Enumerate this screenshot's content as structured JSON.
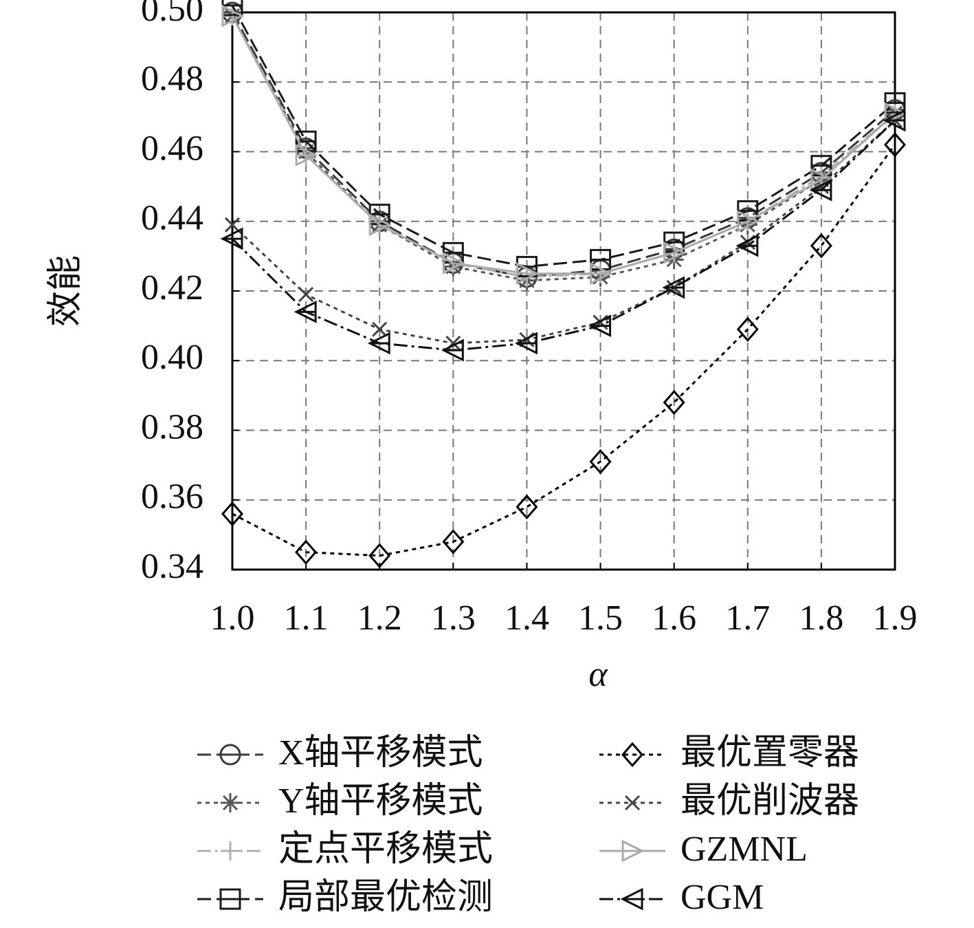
{
  "chart_data": {
    "type": "line",
    "x_label": "α",
    "y_label": "效能",
    "x": [
      1.0,
      1.1,
      1.2,
      1.3,
      1.4,
      1.5,
      1.6,
      1.7,
      1.8,
      1.9
    ],
    "xlim": [
      1.0,
      1.9
    ],
    "xticks": [
      {
        "value": 1.0,
        "label": "1.0"
      },
      1.1,
      1.2,
      1.3,
      1.4,
      1.5,
      1.6,
      1.7,
      1.8,
      1.9
    ],
    "ylim": [
      0.34,
      0.5
    ],
    "yticks": [
      0.34,
      0.36,
      0.38,
      {
        "value": 0.4,
        "label": "0.40"
      },
      0.42,
      0.44,
      0.46,
      0.48,
      {
        "value": 0.5,
        "label": "0.50"
      }
    ],
    "grid": true,
    "legend": "bottom",
    "series": [
      {
        "name": "X轴平移模式",
        "color": "#3a3a3a",
        "marker": "circle",
        "line_style": "dashed",
        "values": [
          0.5,
          0.461,
          0.44,
          0.428,
          0.424,
          0.426,
          0.432,
          0.441,
          0.454,
          0.472
        ]
      },
      {
        "name": "Y轴平移模式",
        "color": "#555555",
        "marker": "asterisk",
        "line_style": "dotted",
        "values": [
          0.499,
          0.46,
          0.439,
          0.427,
          0.423,
          0.424,
          0.429,
          0.439,
          0.452,
          0.471
        ]
      },
      {
        "name": "定点平移模式",
        "color": "#b0b0b0",
        "marker": "plus",
        "line_style": "dashdot",
        "values": [
          0.499,
          0.459,
          0.439,
          0.428,
          0.424,
          0.425,
          0.431,
          0.44,
          0.453,
          0.471
        ]
      },
      {
        "name": "局部最优检测",
        "color": "#1a1a1a",
        "marker": "square",
        "line_style": "dashed",
        "values": [
          0.502,
          0.463,
          0.442,
          0.431,
          0.427,
          0.429,
          0.434,
          0.443,
          0.456,
          0.474
        ]
      },
      {
        "name": "最优置零器",
        "color": "#000000",
        "marker": "diamond",
        "line_style": "dotted",
        "values": [
          0.356,
          0.345,
          0.344,
          0.348,
          0.358,
          0.371,
          0.388,
          0.409,
          0.433,
          0.462
        ]
      },
      {
        "name": "最优削波器",
        "color": "#444444",
        "marker": "x",
        "line_style": "dotted",
        "values": [
          0.439,
          0.419,
          0.409,
          0.405,
          0.406,
          0.411,
          0.421,
          0.434,
          0.45,
          0.469
        ]
      },
      {
        "name": "GZMNL",
        "color": "#aaaaaa",
        "marker": "triangle-right",
        "line_style": "solid",
        "values": [
          0.499,
          0.459,
          0.439,
          0.428,
          0.425,
          0.425,
          0.431,
          0.44,
          0.452,
          0.471
        ]
      },
      {
        "name": "GGM",
        "color": "#111111",
        "marker": "triangle-left",
        "line_style": "dashdot",
        "values": [
          0.435,
          0.414,
          0.405,
          0.403,
          0.405,
          0.41,
          0.421,
          0.433,
          0.449,
          0.469
        ]
      }
    ]
  }
}
